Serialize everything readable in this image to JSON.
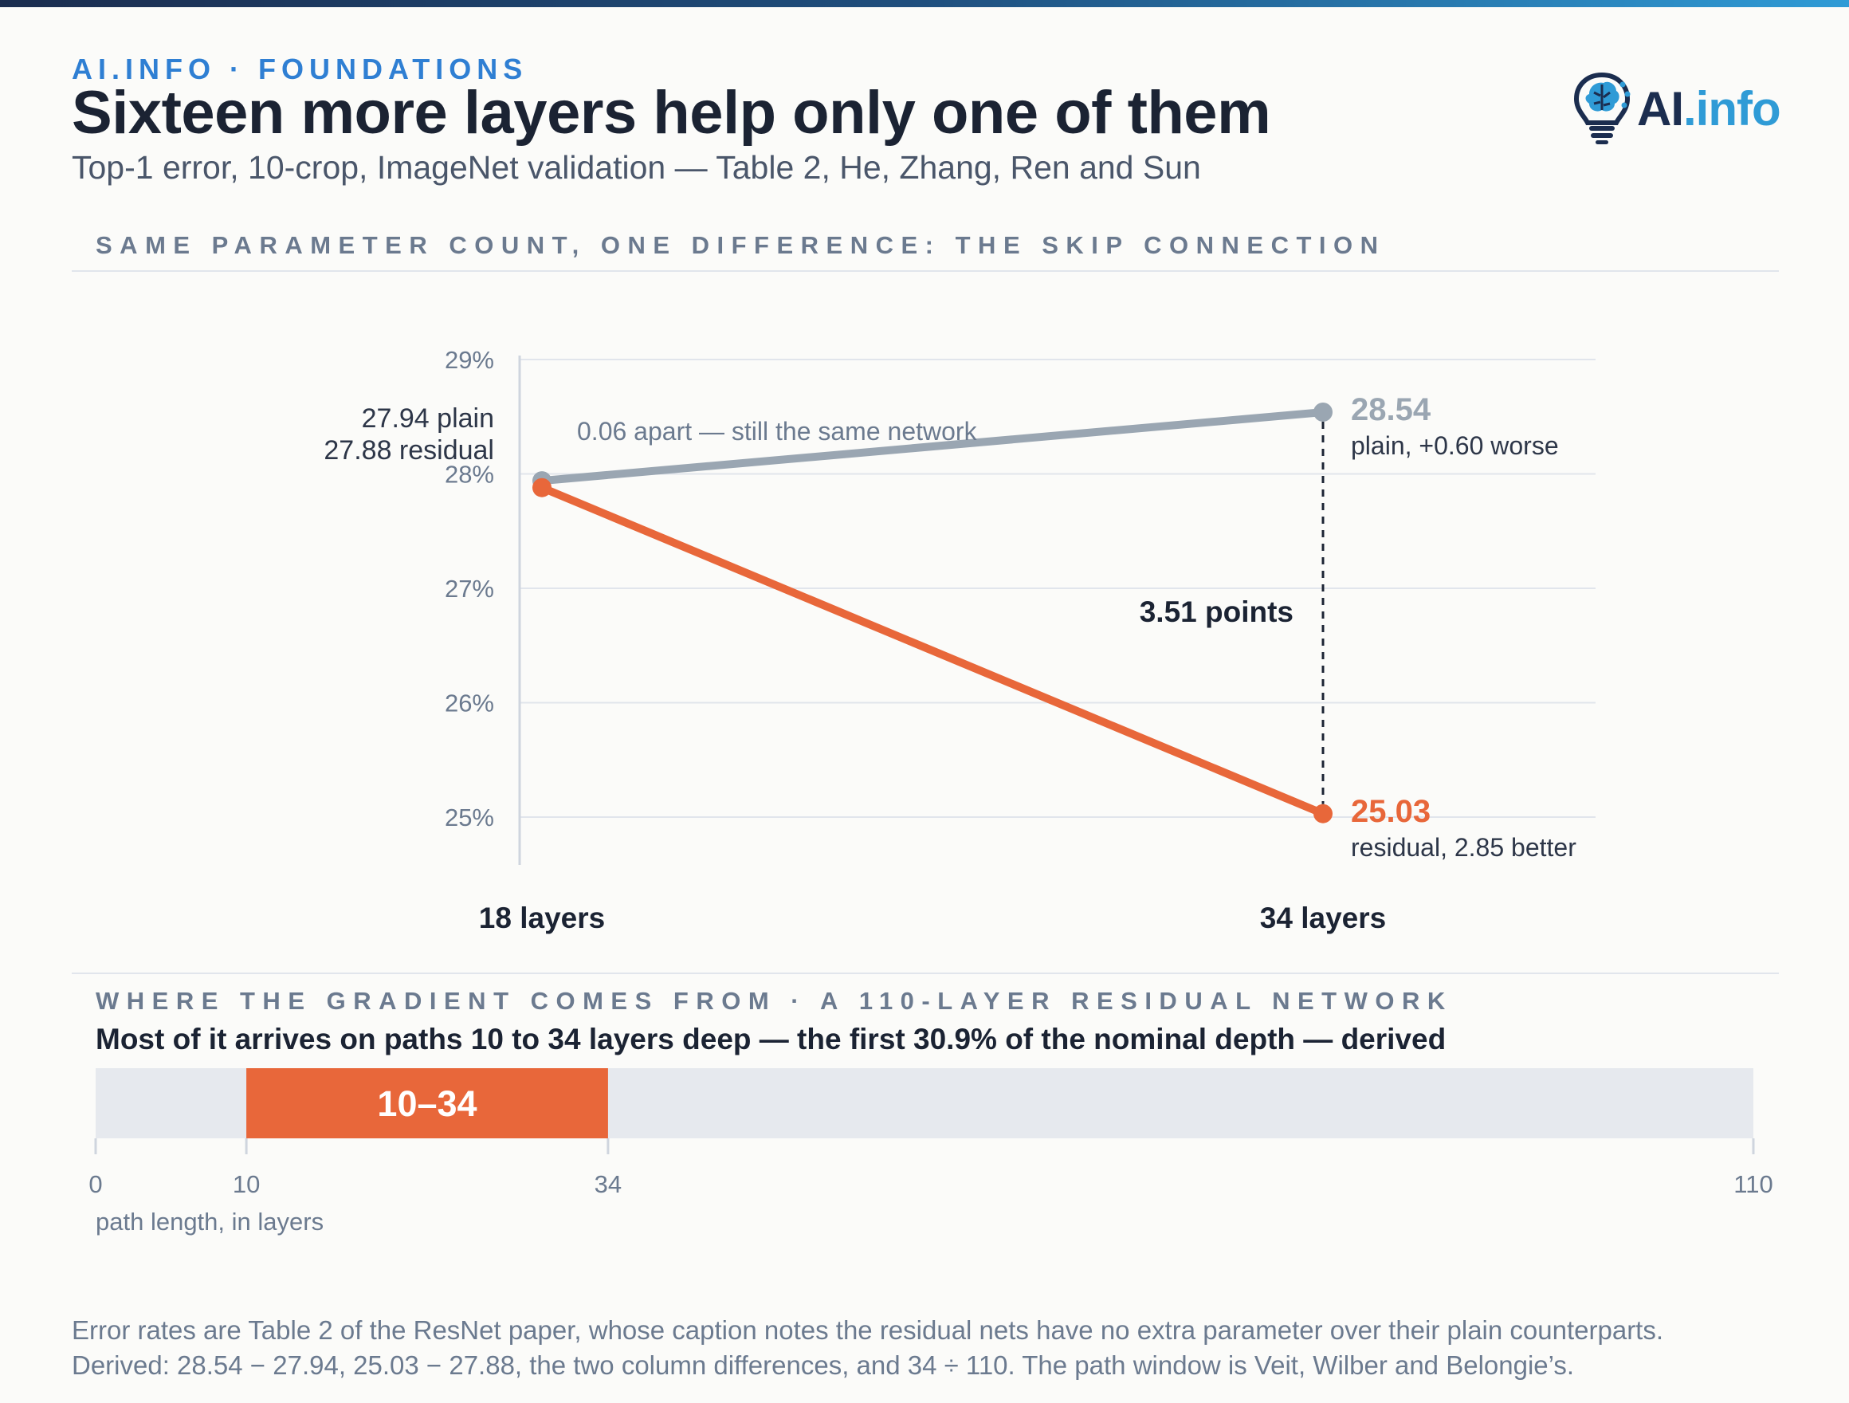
{
  "header": {
    "kicker": "AI.INFO · FOUNDATIONS",
    "title": "Sixteen more layers help only one of them",
    "subtitle": "Top-1 error, 10-crop, ImageNet validation — Table 2, He, Zhang, Ren and Sun"
  },
  "logo": {
    "ai": "AI",
    "info": ".info",
    "icon": "lightbulb-brain-icon"
  },
  "section1": {
    "label": "SAME PARAMETER COUNT, ONE DIFFERENCE: THE SKIP CONNECTION"
  },
  "section2": {
    "label": "WHERE THE GRADIENT COMES FROM · A 110-LAYER RESIDUAL NETWORK",
    "title": "Most of it arrives on paths 10 to 34 layers deep — the first 30.9% of the nominal depth — derived",
    "axis_caption": "path length, in layers"
  },
  "colors": {
    "plain": "#9aa6b2",
    "residual": "#e8673a",
    "band_bg": "#e6e9ee",
    "accent": "#2f7fd3"
  },
  "chart_data": [
    {
      "type": "line",
      "categories": [
        "18 layers",
        "34 layers"
      ],
      "series": [
        {
          "name": "plain",
          "values": [
            27.94,
            28.54
          ]
        },
        {
          "name": "residual",
          "values": [
            27.88,
            25.03
          ]
        }
      ],
      "ylim": [
        25,
        29
      ],
      "yticks": [
        "25%",
        "26%",
        "27%",
        "28%",
        "29%"
      ],
      "grid": true,
      "annotations": {
        "left_plain": "27.94 plain",
        "left_residual": "27.88 residual",
        "gap_note": "0.06 apart — still the same network",
        "plain_value": "28.54",
        "plain_note": "plain, +0.60 worse",
        "residual_value": "25.03",
        "residual_note": "residual, 2.85 better",
        "difference": "3.51 points"
      }
    },
    {
      "type": "bar",
      "orientation": "horizontal",
      "range": [
        0,
        110
      ],
      "highlight": {
        "start": 10,
        "end": 34,
        "label": "10–34"
      },
      "ticks": [
        0,
        10,
        34,
        110
      ],
      "tick_labels": [
        "0",
        "10",
        "34",
        "110"
      ]
    }
  ],
  "footnote": {
    "line1": "Error rates are Table 2 of the ResNet paper, whose caption notes the residual nets have no extra parameter over their plain counterparts.",
    "line2": "Derived: 28.54 − 27.94, 25.03 − 27.88, the two column differences, and 34 ÷ 110. The path window is Veit, Wilber and Belongie’s."
  }
}
